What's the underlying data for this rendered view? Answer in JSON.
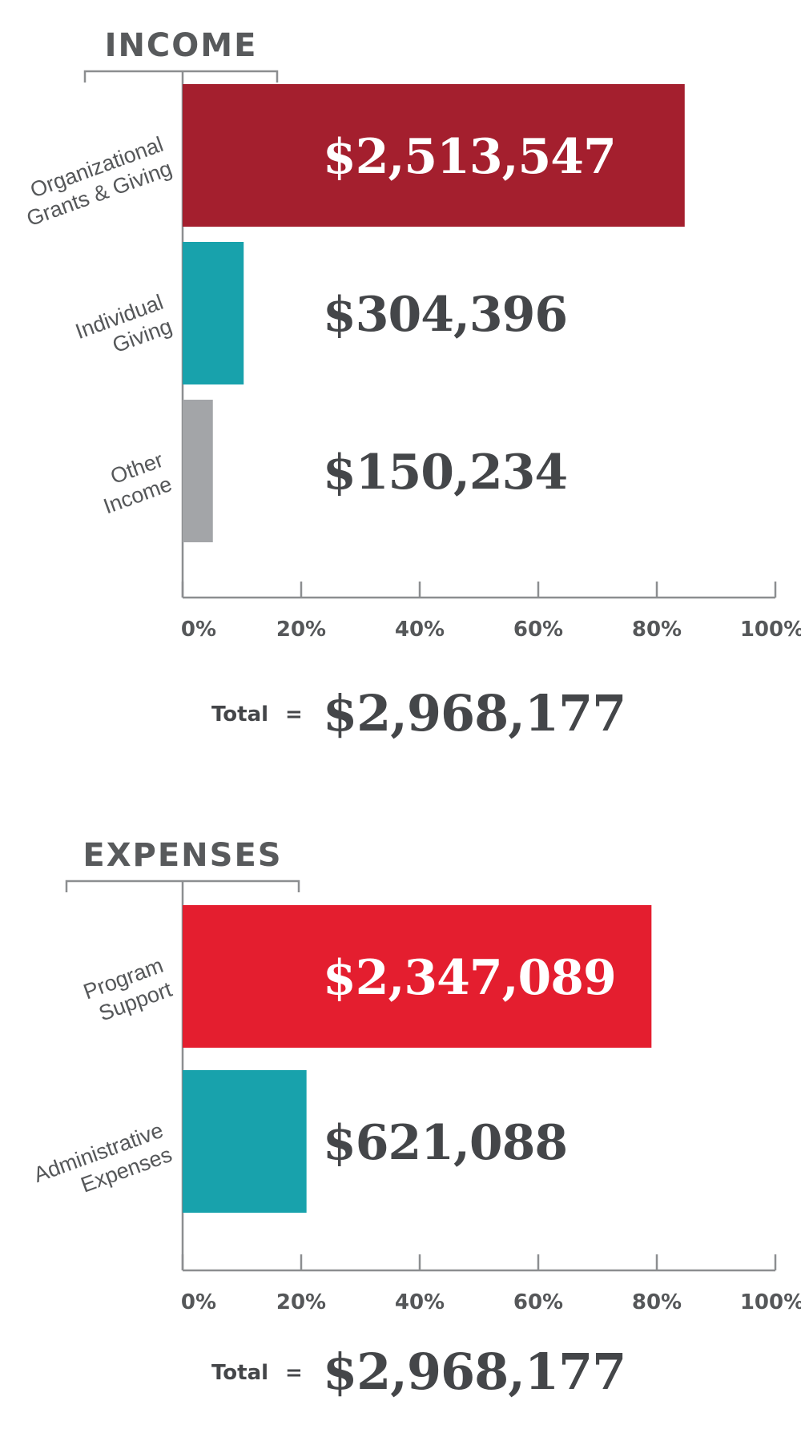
{
  "chart_data": [
    {
      "type": "bar",
      "orientation": "horizontal",
      "title": "INCOME",
      "categories": [
        [
          "Organizational",
          "Grants & Giving"
        ],
        [
          "Individual",
          "Giving"
        ],
        [
          "Other",
          "Income"
        ]
      ],
      "values": [
        2513547,
        304396,
        150234
      ],
      "value_labels": [
        "$2,513,547",
        "$304,396",
        "$150,234"
      ],
      "colors": [
        "#a41f2e",
        "#18a2ac",
        "#a3a5a8"
      ],
      "value_label_colors": [
        "#ffffff",
        "#444649",
        "#444649"
      ],
      "xaxis": {
        "ticks": [
          0,
          20,
          40,
          60,
          80,
          100
        ],
        "tick_labels": [
          "0%",
          "20%",
          "40%",
          "60%",
          "80%",
          "100%"
        ],
        "xlim": [
          0,
          100
        ],
        "unit": "percent of total"
      },
      "percents": [
        84.7,
        10.3,
        5.1
      ],
      "total_label": "Total",
      "total_equals": "=",
      "total": "$2,968,177",
      "grid": false,
      "legend": "none"
    },
    {
      "type": "bar",
      "orientation": "horizontal",
      "title": "EXPENSES",
      "categories": [
        [
          "Program",
          "Support"
        ],
        [
          "Administrative",
          "Expenses"
        ]
      ],
      "values": [
        2347089,
        621088
      ],
      "value_labels": [
        "$2,347,089",
        "$621,088"
      ],
      "colors": [
        "#e41e2f",
        "#18a2ac"
      ],
      "value_label_colors": [
        "#ffffff",
        "#444649"
      ],
      "xaxis": {
        "ticks": [
          0,
          20,
          40,
          60,
          80,
          100
        ],
        "tick_labels": [
          "0%",
          "20%",
          "40%",
          "60%",
          "80%",
          "100%"
        ],
        "xlim": [
          0,
          100
        ],
        "unit": "percent of total"
      },
      "percents": [
        79.1,
        20.9
      ],
      "total_label": "Total",
      "total_equals": "=",
      "total": "$2,968,177",
      "grid": false,
      "legend": "none"
    }
  ]
}
